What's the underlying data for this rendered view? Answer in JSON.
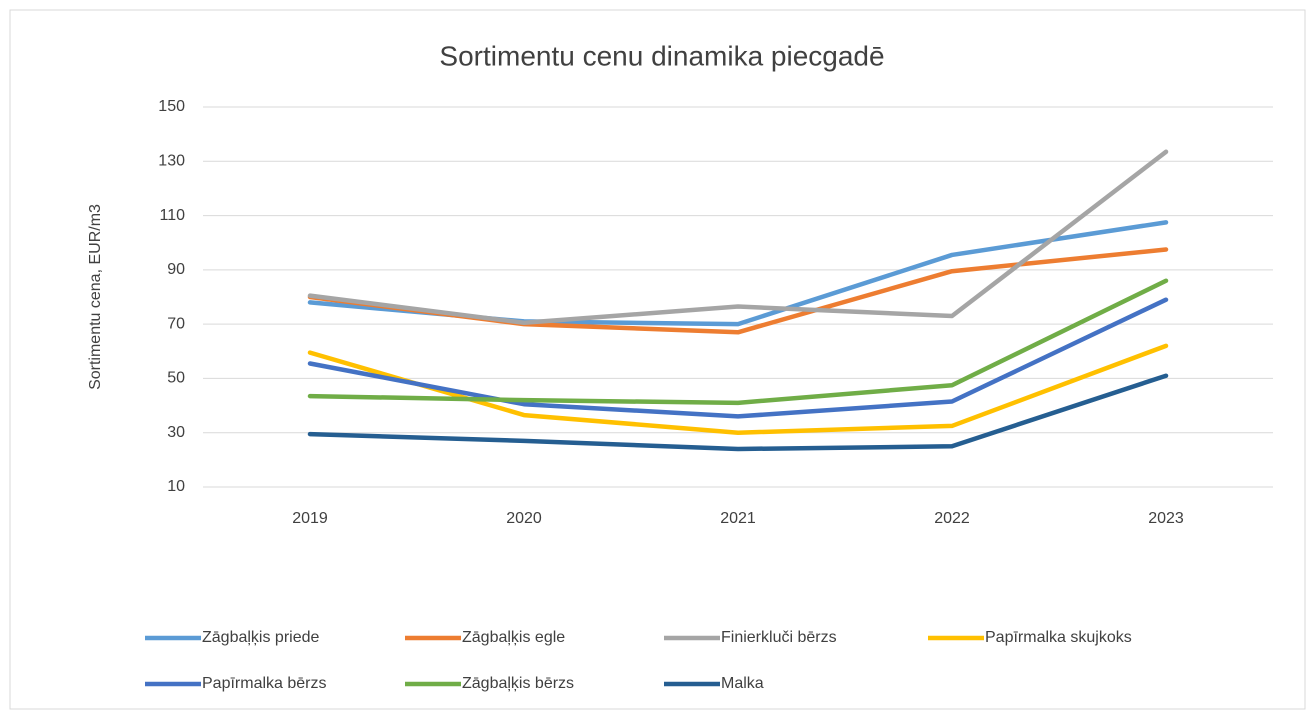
{
  "chart_data": {
    "type": "line",
    "title": "Sortimentu cenu dinamika piecgadē",
    "y_label": "Sortimentu cena, EUR/m3",
    "categories": [
      "2019",
      "2020",
      "2021",
      "2022",
      "2023"
    ],
    "series": [
      {
        "name": "Zāgbaļķis priede",
        "color": "#5b9bd5",
        "values": [
          78,
          71,
          70,
          95.5,
          107.5
        ]
      },
      {
        "name": "Zāgbaļķis egle",
        "color": "#ed7d31",
        "values": [
          80,
          70,
          67,
          89.5,
          97.5
        ]
      },
      {
        "name": "Finierkluči bērzs",
        "color": "#a5a5a5",
        "values": [
          80.5,
          70.5,
          76.5,
          73,
          133.5
        ]
      },
      {
        "name": "Papīrmalka skujkoks",
        "color": "#ffc000",
        "values": [
          59.5,
          36.5,
          30,
          32.5,
          62
        ]
      },
      {
        "name": "Papīrmalka bērzs",
        "color": "#4472c4",
        "values": [
          55.5,
          40.5,
          36,
          41.5,
          79
        ]
      },
      {
        "name": "Zāgbaļķis bērzs",
        "color": "#70ad47",
        "values": [
          43.5,
          42,
          41,
          47.5,
          86
        ]
      },
      {
        "name": "Malka",
        "color": "#255e91",
        "values": [
          29.5,
          27,
          24,
          25,
          51
        ]
      }
    ],
    "ylim": [
      10,
      150
    ],
    "yticks": [
      10,
      30,
      50,
      70,
      90,
      110,
      130,
      150
    ],
    "grid": true,
    "legend": "bottom"
  }
}
